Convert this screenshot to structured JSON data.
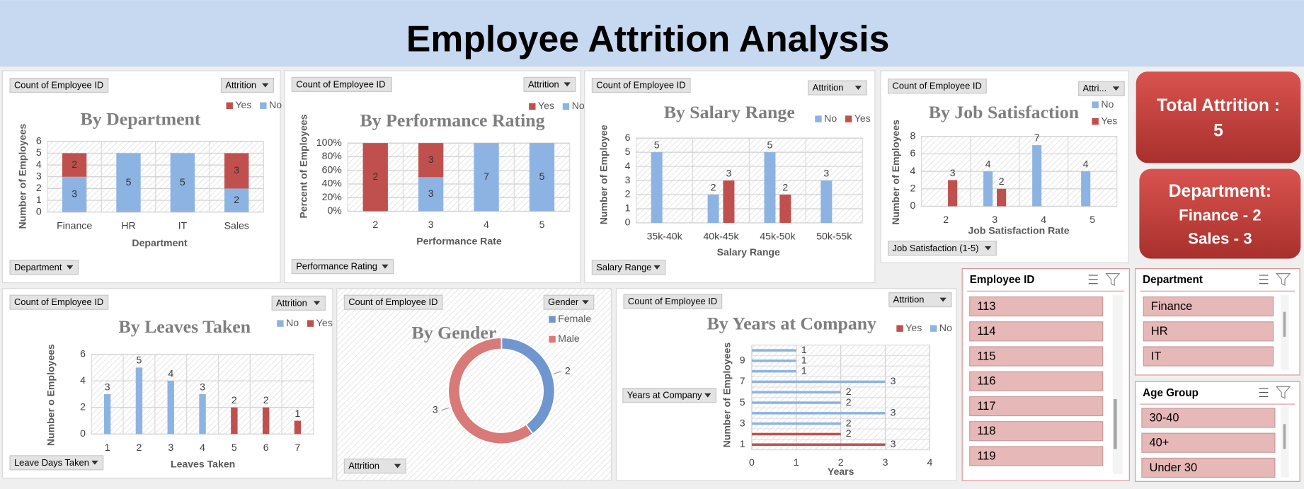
{
  "header": {
    "title": "Employee Attrition Analysis"
  },
  "kpis": [
    {
      "label": "Total Attrition :",
      "value": 5
    },
    {
      "label": "Department:",
      "lines": [
        "Finance - 2",
        "Sales - 3"
      ]
    }
  ],
  "slicers": [
    {
      "title": "Employee ID",
      "items": [
        113,
        114,
        115,
        116,
        117,
        118,
        119
      ]
    },
    {
      "title": "Department",
      "items": [
        "Finance",
        "HR",
        "IT"
      ]
    },
    {
      "title": "Age Group",
      "items": [
        "30-40",
        "40+",
        "Under 30"
      ]
    }
  ],
  "chart_data": [
    {
      "type": "stacked_bar",
      "title": "By Department",
      "field_buttons": [
        "Count of Employee ID",
        "Attrition",
        "Department"
      ],
      "x_label": "Department",
      "y_label": "Number of Employees",
      "categories": [
        "Finance",
        "HR",
        "IT",
        "Sales"
      ],
      "series": [
        {
          "name": "Yes",
          "color": "#c0504d",
          "values": [
            2,
            null,
            null,
            3
          ]
        },
        {
          "name": "No",
          "color": "#8db3e2",
          "values": [
            3,
            5,
            5,
            2
          ]
        }
      ],
      "ylim": [
        0,
        6
      ],
      "yticks": [
        0,
        1,
        2,
        3,
        4,
        5,
        6
      ],
      "grid": true,
      "legend": "top-right"
    },
    {
      "type": "stacked_bar",
      "stacking": "percent",
      "title": "By Performance Rating",
      "field_buttons": [
        "Count of Employee ID",
        "Attrition",
        "Performance Rating"
      ],
      "x_label": "Performance Rate",
      "y_label": "Percent of Employees",
      "categories": [
        "2",
        "3",
        "4",
        "5"
      ],
      "series": [
        {
          "name": "Yes",
          "color": "#c0504d",
          "values": [
            2,
            3,
            null,
            null
          ]
        },
        {
          "name": "No",
          "color": "#8db3e2",
          "values": [
            null,
            3,
            7,
            5
          ]
        }
      ],
      "ylim": [
        0,
        100
      ],
      "yticks": [
        {
          "value": 0,
          "label": "0%"
        },
        {
          "value": 20,
          "label": "20%"
        },
        {
          "value": 40,
          "label": "40%"
        },
        {
          "value": 60,
          "label": "60%"
        },
        {
          "value": 80,
          "label": "80%"
        },
        {
          "value": 100,
          "label": "100%"
        }
      ],
      "grid": true,
      "legend": "top-right"
    },
    {
      "type": "bar",
      "title": "By Salary Range",
      "field_buttons": [
        "Count of Employee ID",
        "Attrition",
        "Salary Range"
      ],
      "x_label": "Salary Range",
      "y_label": "Number of Employee",
      "categories": [
        "35k-40k",
        "40k-45k",
        "45k-50k",
        "50k-55k"
      ],
      "series": [
        {
          "name": "No",
          "color": "#8db3e2",
          "values": [
            5,
            2,
            5,
            3
          ]
        },
        {
          "name": "Yes",
          "color": "#c0504d",
          "values": [
            null,
            3,
            2,
            null
          ]
        }
      ],
      "ylim": [
        0,
        6
      ],
      "yticks": [
        0,
        1,
        2,
        3,
        4,
        5,
        6
      ],
      "grid": true,
      "legend": "top-right"
    },
    {
      "type": "bar",
      "title": "By Job Satisfaction",
      "field_buttons": [
        "Count of Employee ID",
        "Attri...",
        "Job Satisfaction (1-5)"
      ],
      "x_label": "Job Satisfaction Rate",
      "y_label": "Number of Employees",
      "categories": [
        "2",
        "3",
        "4",
        "5"
      ],
      "series": [
        {
          "name": "No",
          "color": "#8db3e2",
          "values": [
            null,
            4,
            7,
            4
          ]
        },
        {
          "name": "Yes",
          "color": "#c0504d",
          "values": [
            3,
            2,
            null,
            null
          ]
        }
      ],
      "ylim": [
        0,
        8
      ],
      "yticks": [
        0,
        2,
        4,
        6,
        8
      ],
      "grid": true,
      "legend": "right"
    },
    {
      "type": "bar",
      "overlap": true,
      "title": "By Leaves Taken",
      "field_buttons": [
        "Count of Employee ID",
        "Attrition",
        "Leave Days Taken"
      ],
      "x_label": "Leaves Taken",
      "y_label": "Number o Employees",
      "categories": [
        "1",
        "2",
        "3",
        "4",
        "5",
        "6",
        "7"
      ],
      "series": [
        {
          "name": "No",
          "color": "#8db3e2",
          "values": [
            3,
            5,
            4,
            3,
            null,
            null,
            null
          ]
        },
        {
          "name": "Yes",
          "color": "#c0504d",
          "values": [
            null,
            null,
            null,
            null,
            2,
            2,
            1
          ]
        }
      ],
      "ylim": [
        0,
        6
      ],
      "yticks": [
        0,
        2,
        4,
        6
      ],
      "grid": true,
      "legend": "top-right"
    },
    {
      "type": "doughnut",
      "title": "By Gender",
      "field_buttons": [
        "Count of Employee ID",
        "Gender",
        "Attrition"
      ],
      "categories": [
        "Female",
        "Male"
      ],
      "values": [
        2,
        3
      ],
      "colors": [
        "#6f96cf",
        "#d97a78"
      ],
      "legend": "right"
    },
    {
      "type": "horizontal_bar",
      "overlap": true,
      "title": "By Years at Company",
      "field_buttons": [
        "Count of Employee ID",
        "Attrition",
        "Years at Company"
      ],
      "x_label": "Years",
      "y_label": "Number of Employees",
      "categories": [
        "1",
        null,
        "3",
        null,
        "5",
        null,
        "7",
        null,
        "9",
        null
      ],
      "series": [
        {
          "name": "Yes",
          "color": "#c0504d",
          "values": [
            3,
            2,
            null,
            null,
            null,
            null,
            null,
            null,
            null,
            null
          ]
        },
        {
          "name": "No",
          "color": "#8db3e2",
          "values": [
            null,
            null,
            2,
            3,
            2,
            2,
            3,
            1,
            1,
            1
          ]
        }
      ],
      "xlim": [
        0,
        4
      ],
      "xticks": [
        0,
        1,
        2,
        3,
        4
      ],
      "grid": true,
      "legend": "top-right"
    }
  ]
}
